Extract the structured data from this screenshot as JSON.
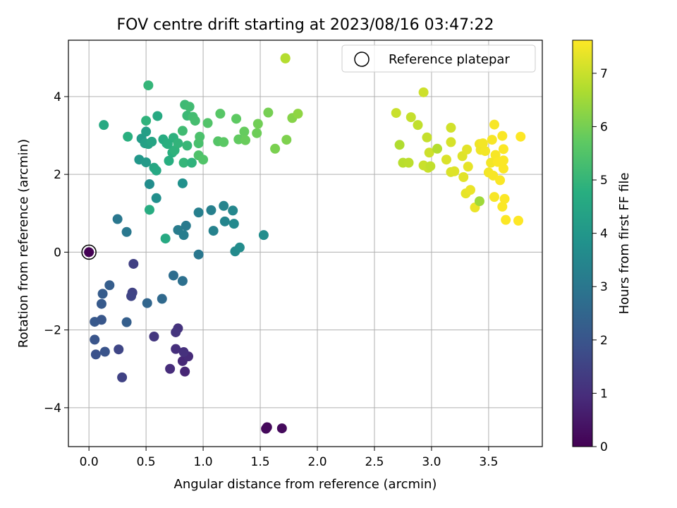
{
  "chart_data": {
    "type": "scatter",
    "title": "FOV centre drift starting at 2023/08/16 03:47:22",
    "xlabel": "Angular distance from reference (arcmin)",
    "ylabel": "Rotation from reference (arcmin)",
    "xlim": [
      -0.18,
      3.97
    ],
    "ylim": [
      -5.0,
      5.45
    ],
    "x_ticks": [
      0.0,
      0.5,
      1.0,
      1.5,
      2.0,
      2.5,
      3.0,
      3.5
    ],
    "x_tick_labels": [
      "0.0",
      "0.5",
      "1.0",
      "1.5",
      "2.0",
      "2.5",
      "3.0",
      "3.5"
    ],
    "y_ticks": [
      -4,
      -2,
      0,
      2,
      4
    ],
    "y_tick_labels": [
      "−4",
      "−2",
      "0",
      "2",
      "4"
    ],
    "grid": true,
    "legend": {
      "placement": "top-right",
      "entries": [
        "Reference platepar"
      ]
    },
    "colorbar": {
      "label": "Hours from first FF file",
      "range": [
        0,
        7.62
      ],
      "ticks": [
        0,
        1,
        2,
        3,
        4,
        5,
        6,
        7
      ],
      "tick_labels": [
        "0",
        "1",
        "2",
        "3",
        "4",
        "5",
        "6",
        "7"
      ],
      "colormap": "viridis"
    },
    "reference_point": {
      "x": 0.0,
      "y": 0.0
    },
    "points": [
      {
        "x": 0.0,
        "y": 0.0,
        "c": 0.0
      },
      {
        "x": 1.56,
        "y": -4.5,
        "c": 0.15
      },
      {
        "x": 1.55,
        "y": -4.54,
        "c": 0.18
      },
      {
        "x": 1.69,
        "y": -4.53,
        "c": 0.2
      },
      {
        "x": 0.84,
        "y": -3.07,
        "c": 0.8
      },
      {
        "x": 0.82,
        "y": -2.8,
        "c": 0.85
      },
      {
        "x": 0.87,
        "y": -2.68,
        "c": 0.9
      },
      {
        "x": 0.71,
        "y": -3.0,
        "c": 0.95
      },
      {
        "x": 0.76,
        "y": -2.49,
        "c": 1.0
      },
      {
        "x": 0.83,
        "y": -2.57,
        "c": 1.05
      },
      {
        "x": 0.78,
        "y": -1.96,
        "c": 1.1
      },
      {
        "x": 0.76,
        "y": -2.06,
        "c": 1.15
      },
      {
        "x": 0.57,
        "y": -2.17,
        "c": 1.2
      },
      {
        "x": 0.29,
        "y": -3.22,
        "c": 1.5
      },
      {
        "x": 0.26,
        "y": -2.5,
        "c": 1.6
      },
      {
        "x": 0.38,
        "y": -1.04,
        "c": 1.5
      },
      {
        "x": 0.37,
        "y": -1.13,
        "c": 1.55
      },
      {
        "x": 0.39,
        "y": -0.3,
        "c": 1.45
      },
      {
        "x": 0.06,
        "y": -2.63,
        "c": 1.9
      },
      {
        "x": 0.14,
        "y": -2.56,
        "c": 1.95
      },
      {
        "x": 0.05,
        "y": -2.25,
        "c": 2.0
      },
      {
        "x": 0.05,
        "y": -1.79,
        "c": 2.1
      },
      {
        "x": 0.11,
        "y": -1.74,
        "c": 2.05
      },
      {
        "x": 0.11,
        "y": -1.33,
        "c": 2.15
      },
      {
        "x": 0.12,
        "y": -1.07,
        "c": 2.2
      },
      {
        "x": 0.18,
        "y": -0.85,
        "c": 2.25
      },
      {
        "x": 0.33,
        "y": -1.8,
        "c": 2.3
      },
      {
        "x": 0.51,
        "y": -1.31,
        "c": 2.5
      },
      {
        "x": 0.64,
        "y": -1.2,
        "c": 2.6
      },
      {
        "x": 0.74,
        "y": -0.6,
        "c": 2.7
      },
      {
        "x": 0.82,
        "y": -0.74,
        "c": 2.8
      },
      {
        "x": 0.96,
        "y": -0.06,
        "c": 3.0
      },
      {
        "x": 0.25,
        "y": 0.85,
        "c": 3.0
      },
      {
        "x": 0.33,
        "y": 0.52,
        "c": 3.05
      },
      {
        "x": 0.85,
        "y": 0.68,
        "c": 3.1
      },
      {
        "x": 0.78,
        "y": 0.57,
        "c": 3.15
      },
      {
        "x": 0.83,
        "y": 0.44,
        "c": 3.2
      },
      {
        "x": 0.96,
        "y": 1.02,
        "c": 3.25
      },
      {
        "x": 1.07,
        "y": 1.08,
        "c": 3.3
      },
      {
        "x": 1.09,
        "y": 0.55,
        "c": 3.35
      },
      {
        "x": 1.18,
        "y": 1.19,
        "c": 3.4
      },
      {
        "x": 1.19,
        "y": 0.79,
        "c": 3.45
      },
      {
        "x": 1.26,
        "y": 1.07,
        "c": 3.5
      },
      {
        "x": 1.27,
        "y": 0.73,
        "c": 3.55
      },
      {
        "x": 1.28,
        "y": 0.02,
        "c": 3.6
      },
      {
        "x": 1.32,
        "y": 0.12,
        "c": 3.65
      },
      {
        "x": 1.53,
        "y": 0.44,
        "c": 3.7
      },
      {
        "x": 0.53,
        "y": 1.75,
        "c": 3.7
      },
      {
        "x": 0.59,
        "y": 1.39,
        "c": 3.75
      },
      {
        "x": 0.82,
        "y": 1.77,
        "c": 3.8
      },
      {
        "x": 0.44,
        "y": 2.38,
        "c": 4.0
      },
      {
        "x": 0.5,
        "y": 2.31,
        "c": 4.1
      },
      {
        "x": 0.46,
        "y": 2.92,
        "c": 4.15
      },
      {
        "x": 0.5,
        "y": 3.1,
        "c": 4.25
      },
      {
        "x": 0.49,
        "y": 2.8,
        "c": 4.3
      },
      {
        "x": 0.52,
        "y": 2.78,
        "c": 4.35
      },
      {
        "x": 0.55,
        "y": 2.84,
        "c": 4.45
      },
      {
        "x": 0.57,
        "y": 2.17,
        "c": 4.5
      },
      {
        "x": 0.59,
        "y": 2.1,
        "c": 4.55
      },
      {
        "x": 0.6,
        "y": 3.5,
        "c": 4.6
      },
      {
        "x": 0.65,
        "y": 2.9,
        "c": 4.65
      },
      {
        "x": 0.68,
        "y": 2.8,
        "c": 4.7
      },
      {
        "x": 0.7,
        "y": 2.35,
        "c": 4.75
      },
      {
        "x": 0.73,
        "y": 2.56,
        "c": 4.8
      },
      {
        "x": 0.74,
        "y": 2.94,
        "c": 4.85
      },
      {
        "x": 0.75,
        "y": 2.62,
        "c": 4.9
      },
      {
        "x": 0.78,
        "y": 2.8,
        "c": 4.95
      },
      {
        "x": 0.83,
        "y": 2.3,
        "c": 5.0
      },
      {
        "x": 0.86,
        "y": 2.74,
        "c": 5.05
      },
      {
        "x": 0.86,
        "y": 3.51,
        "c": 5.1
      },
      {
        "x": 0.84,
        "y": 3.79,
        "c": 5.15
      },
      {
        "x": 0.88,
        "y": 3.74,
        "c": 5.2
      },
      {
        "x": 0.91,
        "y": 3.48,
        "c": 5.25
      },
      {
        "x": 0.93,
        "y": 3.38,
        "c": 5.3
      },
      {
        "x": 0.96,
        "y": 2.8,
        "c": 5.35
      },
      {
        "x": 0.97,
        "y": 2.97,
        "c": 5.4
      },
      {
        "x": 0.96,
        "y": 2.49,
        "c": 5.45
      },
      {
        "x": 1.0,
        "y": 2.38,
        "c": 5.5
      },
      {
        "x": 1.04,
        "y": 3.32,
        "c": 5.5
      },
      {
        "x": 1.13,
        "y": 2.85,
        "c": 5.55
      },
      {
        "x": 1.15,
        "y": 3.56,
        "c": 5.6
      },
      {
        "x": 1.18,
        "y": 2.83,
        "c": 5.65
      },
      {
        "x": 1.29,
        "y": 3.43,
        "c": 5.7
      },
      {
        "x": 1.31,
        "y": 2.9,
        "c": 5.75
      },
      {
        "x": 1.36,
        "y": 3.1,
        "c": 5.8
      },
      {
        "x": 1.37,
        "y": 2.88,
        "c": 5.85
      },
      {
        "x": 1.47,
        "y": 3.06,
        "c": 5.9
      },
      {
        "x": 1.48,
        "y": 3.3,
        "c": 5.95
      },
      {
        "x": 1.57,
        "y": 3.59,
        "c": 6.0
      },
      {
        "x": 1.63,
        "y": 2.66,
        "c": 6.05
      },
      {
        "x": 1.73,
        "y": 2.89,
        "c": 6.1
      },
      {
        "x": 1.78,
        "y": 3.45,
        "c": 6.2
      },
      {
        "x": 1.83,
        "y": 3.56,
        "c": 6.3
      },
      {
        "x": 0.52,
        "y": 4.29,
        "c": 5.0
      },
      {
        "x": 0.53,
        "y": 1.09,
        "c": 4.7
      },
      {
        "x": 0.67,
        "y": 0.35,
        "c": 4.6
      },
      {
        "x": 0.82,
        "y": 3.12,
        "c": 5.2
      },
      {
        "x": 0.13,
        "y": 3.27,
        "c": 4.6
      },
      {
        "x": 0.34,
        "y": 2.97,
        "c": 4.8
      },
      {
        "x": 0.5,
        "y": 3.38,
        "c": 4.9
      },
      {
        "x": 0.9,
        "y": 2.3,
        "c": 4.9
      },
      {
        "x": 0.69,
        "y": 2.78,
        "c": 4.8
      },
      {
        "x": 1.72,
        "y": 4.98,
        "c": 6.8
      },
      {
        "x": 1.72,
        "y": 4.99,
        "c": 6.75
      },
      {
        "x": 2.69,
        "y": 3.58,
        "c": 7.0
      },
      {
        "x": 2.72,
        "y": 2.76,
        "c": 6.7
      },
      {
        "x": 2.75,
        "y": 2.3,
        "c": 6.8
      },
      {
        "x": 2.8,
        "y": 2.3,
        "c": 6.85
      },
      {
        "x": 2.82,
        "y": 3.47,
        "c": 6.95
      },
      {
        "x": 2.88,
        "y": 3.27,
        "c": 6.9
      },
      {
        "x": 2.93,
        "y": 4.11,
        "c": 7.05
      },
      {
        "x": 2.93,
        "y": 2.23,
        "c": 7.0
      },
      {
        "x": 2.96,
        "y": 2.95,
        "c": 6.95
      },
      {
        "x": 2.97,
        "y": 2.17,
        "c": 7.0
      },
      {
        "x": 2.98,
        "y": 2.56,
        "c": 7.05
      },
      {
        "x": 2.99,
        "y": 2.21,
        "c": 6.9
      },
      {
        "x": 3.05,
        "y": 2.66,
        "c": 6.75
      },
      {
        "x": 3.13,
        "y": 2.38,
        "c": 7.2
      },
      {
        "x": 3.17,
        "y": 3.2,
        "c": 7.1
      },
      {
        "x": 3.17,
        "y": 2.83,
        "c": 7.15
      },
      {
        "x": 3.17,
        "y": 2.06,
        "c": 7.2
      },
      {
        "x": 3.2,
        "y": 2.08,
        "c": 7.25
      },
      {
        "x": 3.27,
        "y": 2.47,
        "c": 7.25
      },
      {
        "x": 3.28,
        "y": 1.93,
        "c": 7.3
      },
      {
        "x": 3.3,
        "y": 1.51,
        "c": 7.35
      },
      {
        "x": 3.31,
        "y": 2.64,
        "c": 7.3
      },
      {
        "x": 3.32,
        "y": 2.2,
        "c": 7.35
      },
      {
        "x": 3.34,
        "y": 1.6,
        "c": 7.4
      },
      {
        "x": 3.38,
        "y": 1.15,
        "c": 7.4
      },
      {
        "x": 3.42,
        "y": 1.31,
        "c": 6.5
      },
      {
        "x": 3.42,
        "y": 2.78,
        "c": 7.45
      },
      {
        "x": 3.43,
        "y": 2.63,
        "c": 7.45
      },
      {
        "x": 3.45,
        "y": 2.8,
        "c": 7.5
      },
      {
        "x": 3.47,
        "y": 2.6,
        "c": 7.5
      },
      {
        "x": 3.5,
        "y": 2.05,
        "c": 7.5
      },
      {
        "x": 3.52,
        "y": 2.3,
        "c": 7.5
      },
      {
        "x": 3.53,
        "y": 2.89,
        "c": 7.55
      },
      {
        "x": 3.54,
        "y": 1.97,
        "c": 7.55
      },
      {
        "x": 3.55,
        "y": 3.28,
        "c": 7.55
      },
      {
        "x": 3.55,
        "y": 1.42,
        "c": 7.55
      },
      {
        "x": 3.56,
        "y": 2.5,
        "c": 7.55
      },
      {
        "x": 3.58,
        "y": 2.32,
        "c": 7.58
      },
      {
        "x": 3.6,
        "y": 1.85,
        "c": 7.58
      },
      {
        "x": 3.62,
        "y": 2.99,
        "c": 7.58
      },
      {
        "x": 3.62,
        "y": 1.17,
        "c": 7.58
      },
      {
        "x": 3.63,
        "y": 2.15,
        "c": 7.6
      },
      {
        "x": 3.63,
        "y": 2.36,
        "c": 7.6
      },
      {
        "x": 3.63,
        "y": 2.65,
        "c": 7.6
      },
      {
        "x": 3.64,
        "y": 1.37,
        "c": 7.6
      },
      {
        "x": 3.65,
        "y": 0.83,
        "c": 7.6
      },
      {
        "x": 3.76,
        "y": 0.81,
        "c": 7.62
      },
      {
        "x": 3.78,
        "y": 2.97,
        "c": 7.62
      }
    ]
  }
}
